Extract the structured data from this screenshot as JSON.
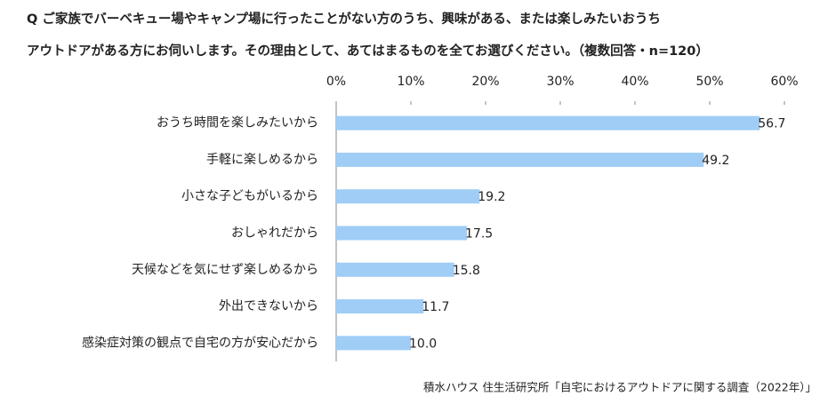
{
  "chart_data": {
    "type": "barh",
    "title_lines": [
      "Q ご家族でバーベキュー場やキャンプ場に行ったことがない方のうち、興味がある、または楽しみたいおうち",
      "アウトドアがある方にお伺いします。その理由として、あてはまるものを全てお選びください。（複数回答・n=120）"
    ],
    "categories": [
      "おうち時間を楽しみたいから",
      "手軽に楽しめるから",
      "小さな子どもがいるから",
      "おしゃれだから",
      "天候などを気にせず楽しめるから",
      "外出できないから",
      "感染症対策の観点で自宅の方が安心だから"
    ],
    "values": [
      56.7,
      49.2,
      19.2,
      17.5,
      15.8,
      11.7,
      10.0
    ],
    "value_labels": [
      "56.7",
      "49.2",
      "19.2",
      "17.5",
      "15.8",
      "11.7",
      "10.0"
    ],
    "color": "#9fcdf6",
    "xlim": [
      0,
      60
    ],
    "xticks": [
      {
        "value": 0,
        "label": "0%"
      },
      {
        "value": 10,
        "label": "10%"
      },
      {
        "value": 20,
        "label": "20%"
      },
      {
        "value": 30,
        "label": "30%"
      },
      {
        "value": 40,
        "label": "40%"
      },
      {
        "value": 50,
        "label": "50%"
      },
      {
        "value": 60,
        "label": "60%"
      }
    ],
    "grid": false,
    "source": "積水ハウス 住生活研究所「自宅におけるアウトドアに関する調査（2022年）」"
  }
}
